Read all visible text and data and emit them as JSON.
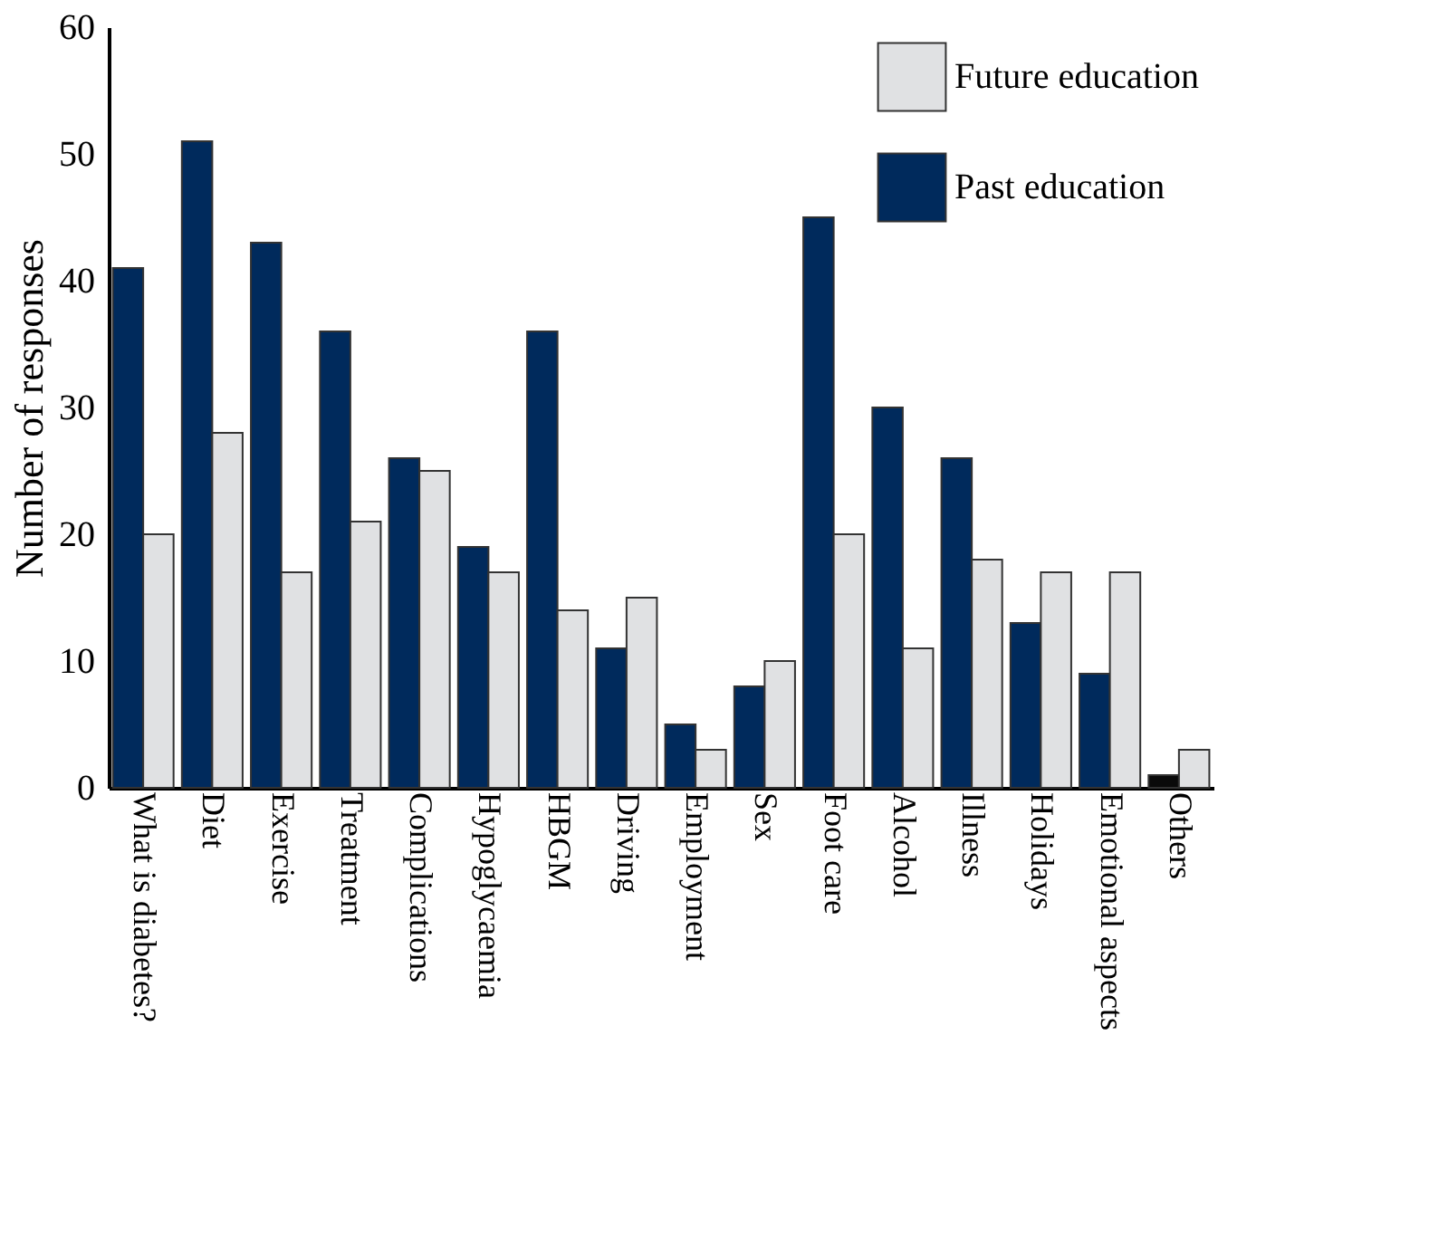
{
  "chart_data": {
    "type": "bar",
    "ylabel": "Number of responses",
    "categories": [
      "What is diabetes?",
      "Diet",
      "Exercise",
      "Treatment",
      "Complications",
      "Hypoglycaemia",
      "HBGM",
      "Driving",
      "Employment",
      "Sex",
      "Foot care",
      "Alcohol",
      "Illness",
      "Holidays",
      "Emotional aspects",
      "Others"
    ],
    "series": [
      {
        "name": "Past education",
        "color": "#002a5c",
        "colors": [
          "#002a5c",
          "#002a5c",
          "#002a5c",
          "#002a5c",
          "#002a5c",
          "#002a5c",
          "#002a5c",
          "#002a5c",
          "#002a5c",
          "#002a5c",
          "#002a5c",
          "#002a5c",
          "#002a5c",
          "#002a5c",
          "#002a5c",
          "#0a0a0a"
        ],
        "values": [
          41,
          51,
          43,
          36,
          26,
          19,
          36,
          11,
          5,
          8,
          45,
          30,
          26,
          13,
          9,
          1
        ]
      },
      {
        "name": "Future education",
        "color": "#e0e1e3",
        "values": [
          20,
          28,
          17,
          21,
          25,
          17,
          14,
          15,
          3,
          10,
          20,
          11,
          18,
          17,
          17,
          3
        ]
      }
    ],
    "ylim": [
      0,
      60
    ],
    "yticks": [
      0,
      10,
      20,
      30,
      40,
      50,
      60
    ],
    "grid": false,
    "legend": "top right"
  }
}
